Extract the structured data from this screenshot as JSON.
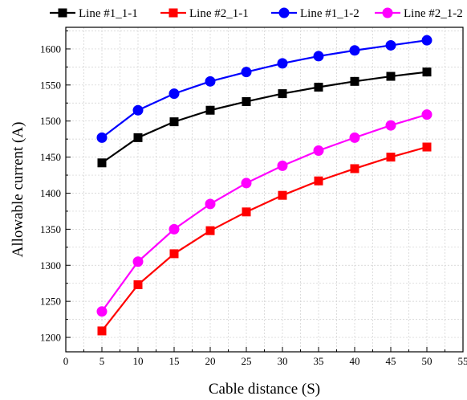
{
  "chart_data": {
    "type": "line",
    "xlabel": "Cable distance (S)",
    "ylabel": "Allowable current (A)",
    "xlim": [
      0,
      55
    ],
    "ylim": [
      1180,
      1630
    ],
    "xticks": [
      0,
      5,
      10,
      15,
      20,
      25,
      30,
      35,
      40,
      45,
      50,
      55
    ],
    "yticks": [
      1200,
      1250,
      1300,
      1350,
      1400,
      1450,
      1500,
      1550,
      1600
    ],
    "grid": true,
    "legend_position": "top",
    "x": [
      5,
      10,
      15,
      20,
      25,
      30,
      35,
      40,
      45,
      50
    ],
    "series": [
      {
        "name": "Line #1_1-1",
        "color": "#000000",
        "marker": "square",
        "values": [
          1442,
          1477,
          1499,
          1515,
          1527,
          1538,
          1547,
          1555,
          1562,
          1568
        ]
      },
      {
        "name": "Line #2_1-1",
        "color": "#ff0000",
        "marker": "square",
        "values": [
          1209,
          1273,
          1316,
          1348,
          1374,
          1397,
          1417,
          1434,
          1450,
          1464
        ]
      },
      {
        "name": "Line #1_1-2",
        "color": "#0000ff",
        "marker": "circle",
        "values": [
          1477,
          1515,
          1538,
          1555,
          1568,
          1580,
          1590,
          1598,
          1605,
          1612
        ]
      },
      {
        "name": "Line #2_1-2",
        "color": "#ff00ff",
        "marker": "circle",
        "values": [
          1236,
          1305,
          1350,
          1385,
          1414,
          1438,
          1459,
          1477,
          1494,
          1509
        ]
      }
    ]
  }
}
